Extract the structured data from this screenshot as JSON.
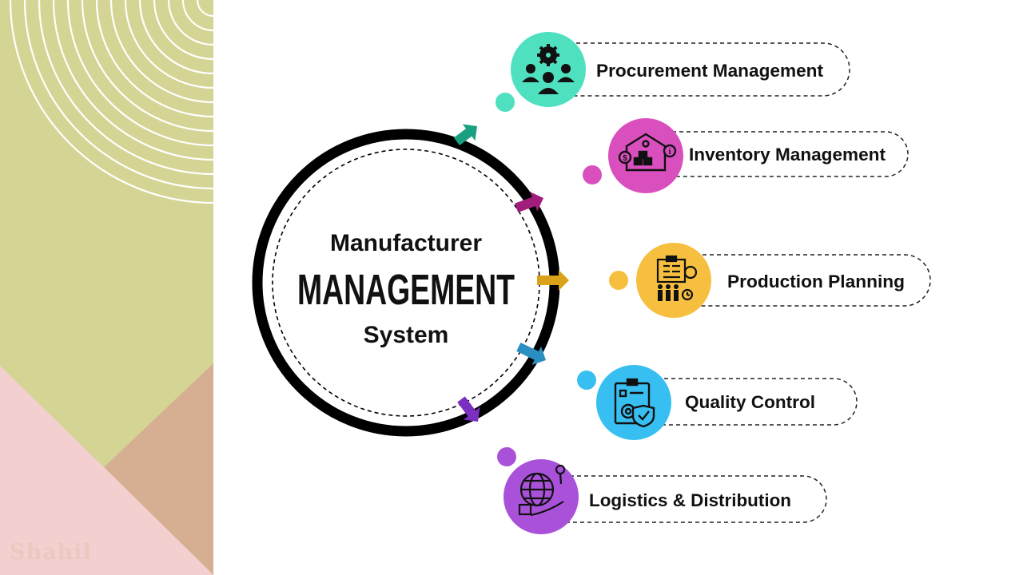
{
  "hub": {
    "line1": "Manufacturer",
    "line2": "MANAGEMENT",
    "line3": "System"
  },
  "processes": [
    {
      "label": "Procurement Management",
      "icon": "team-gear-icon",
      "color": "#4fe0c0",
      "arrow_color": "#1aa080"
    },
    {
      "label": "Inventory Management",
      "icon": "warehouse-icon",
      "color": "#d94fbe",
      "arrow_color": "#a11d7c"
    },
    {
      "label": "Production Planning",
      "icon": "planning-clipboard-icon",
      "color": "#f6bf3f",
      "arrow_color": "#d9a21a"
    },
    {
      "label": "Quality Control",
      "icon": "quality-checklist-icon",
      "color": "#38bff2",
      "arrow_color": "#2a8fc0"
    },
    {
      "label": "Logistics & Distribution",
      "icon": "global-delivery-icon",
      "color": "#a952d9",
      "arrow_color": "#7a2fbe"
    }
  ],
  "watermark": "Shahil",
  "colors": {
    "left_panel_olive": "#d4d494",
    "left_panel_pink": "#f3cfcf",
    "left_panel_tan": "#d6af92",
    "arcs": "#ffffff"
  }
}
